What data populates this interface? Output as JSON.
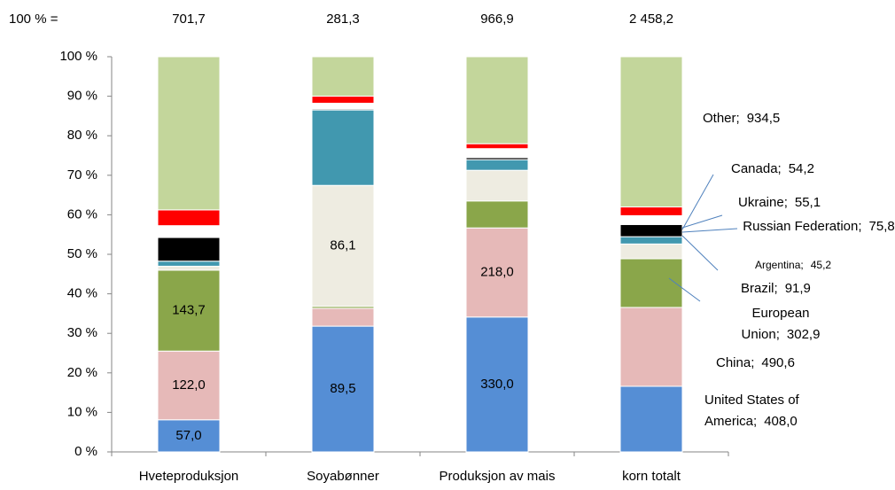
{
  "chart_data": {
    "type": "stacked_percent_bar",
    "total_label": "100 % =",
    "totals": [
      701.7,
      281.3,
      966.9,
      2458.2
    ],
    "total_labels": [
      "701,7",
      "281,3",
      "966,9",
      "2 458,2"
    ],
    "categories": [
      "Hveteproduksjon",
      "Soyabønner",
      "Produksjon av mais",
      "korn totalt"
    ],
    "label_separator": ";",
    "series": [
      {
        "name": "United States of America",
        "color": "#558ed5",
        "values": [
          57.0,
          89.5,
          330.0,
          408.0
        ],
        "value_labels": [
          "57,0",
          "89,5",
          "330,0",
          "408,0"
        ]
      },
      {
        "name": "China",
        "color": "#e6b9b8",
        "values": [
          122.0,
          12.7,
          218.0,
          490.6
        ],
        "value_labels": [
          "122,0",
          null,
          "218,0",
          "490,6"
        ]
      },
      {
        "name": "European Union",
        "color": "#8aa64a",
        "values": [
          143.7,
          1.4,
          66,
          302.9
        ],
        "value_labels": [
          "143,7",
          null,
          null,
          "302,9"
        ]
      },
      {
        "name": "Brazil",
        "color": "#eeece1",
        "values": [
          7,
          86.1,
          75,
          91.9
        ],
        "value_labels": [
          null,
          "86,1",
          null,
          "91,9"
        ]
      },
      {
        "name": "Argentina",
        "color": "#4198af",
        "values": [
          9,
          53.7,
          26,
          45.2
        ],
        "value_labels": [
          null,
          null,
          null,
          "45,2"
        ]
      },
      {
        "name": "Russian Federation",
        "color": "#000000",
        "values": [
          42,
          0.8,
          5,
          75.8
        ],
        "value_labels": [
          null,
          null,
          null,
          "75,8"
        ]
      },
      {
        "name": "Ukraine",
        "color": "#ffffff",
        "values": [
          21,
          4,
          22,
          55.1
        ],
        "value_labels": [
          null,
          null,
          null,
          "55,1"
        ]
      },
      {
        "name": "Canada",
        "color": "#ff0000",
        "values": [
          28,
          5,
          12,
          54.2
        ],
        "value_labels": [
          null,
          null,
          null,
          "54,2"
        ]
      },
      {
        "name": "Other",
        "color": "#c3d69b",
        "values": [
          272,
          28.1,
          212.9,
          934.5
        ],
        "value_labels": [
          null,
          null,
          null,
          "934,5"
        ]
      }
    ],
    "ylim": [
      0,
      100
    ],
    "yticks": [
      {
        "value": 0,
        "label": "0 %"
      },
      {
        "value": 10,
        "label": "10 %"
      },
      {
        "value": 20,
        "label": "20 %"
      },
      {
        "value": 30,
        "label": "30 %"
      },
      {
        "value": 40,
        "label": "40 %"
      },
      {
        "value": 50,
        "label": "50 %"
      },
      {
        "value": 60,
        "label": "60 %"
      },
      {
        "value": 70,
        "label": "70 %"
      },
      {
        "value": 80,
        "label": "80 %"
      },
      {
        "value": 90,
        "label": "90 %"
      },
      {
        "value": 100,
        "label": "100 %"
      }
    ]
  }
}
